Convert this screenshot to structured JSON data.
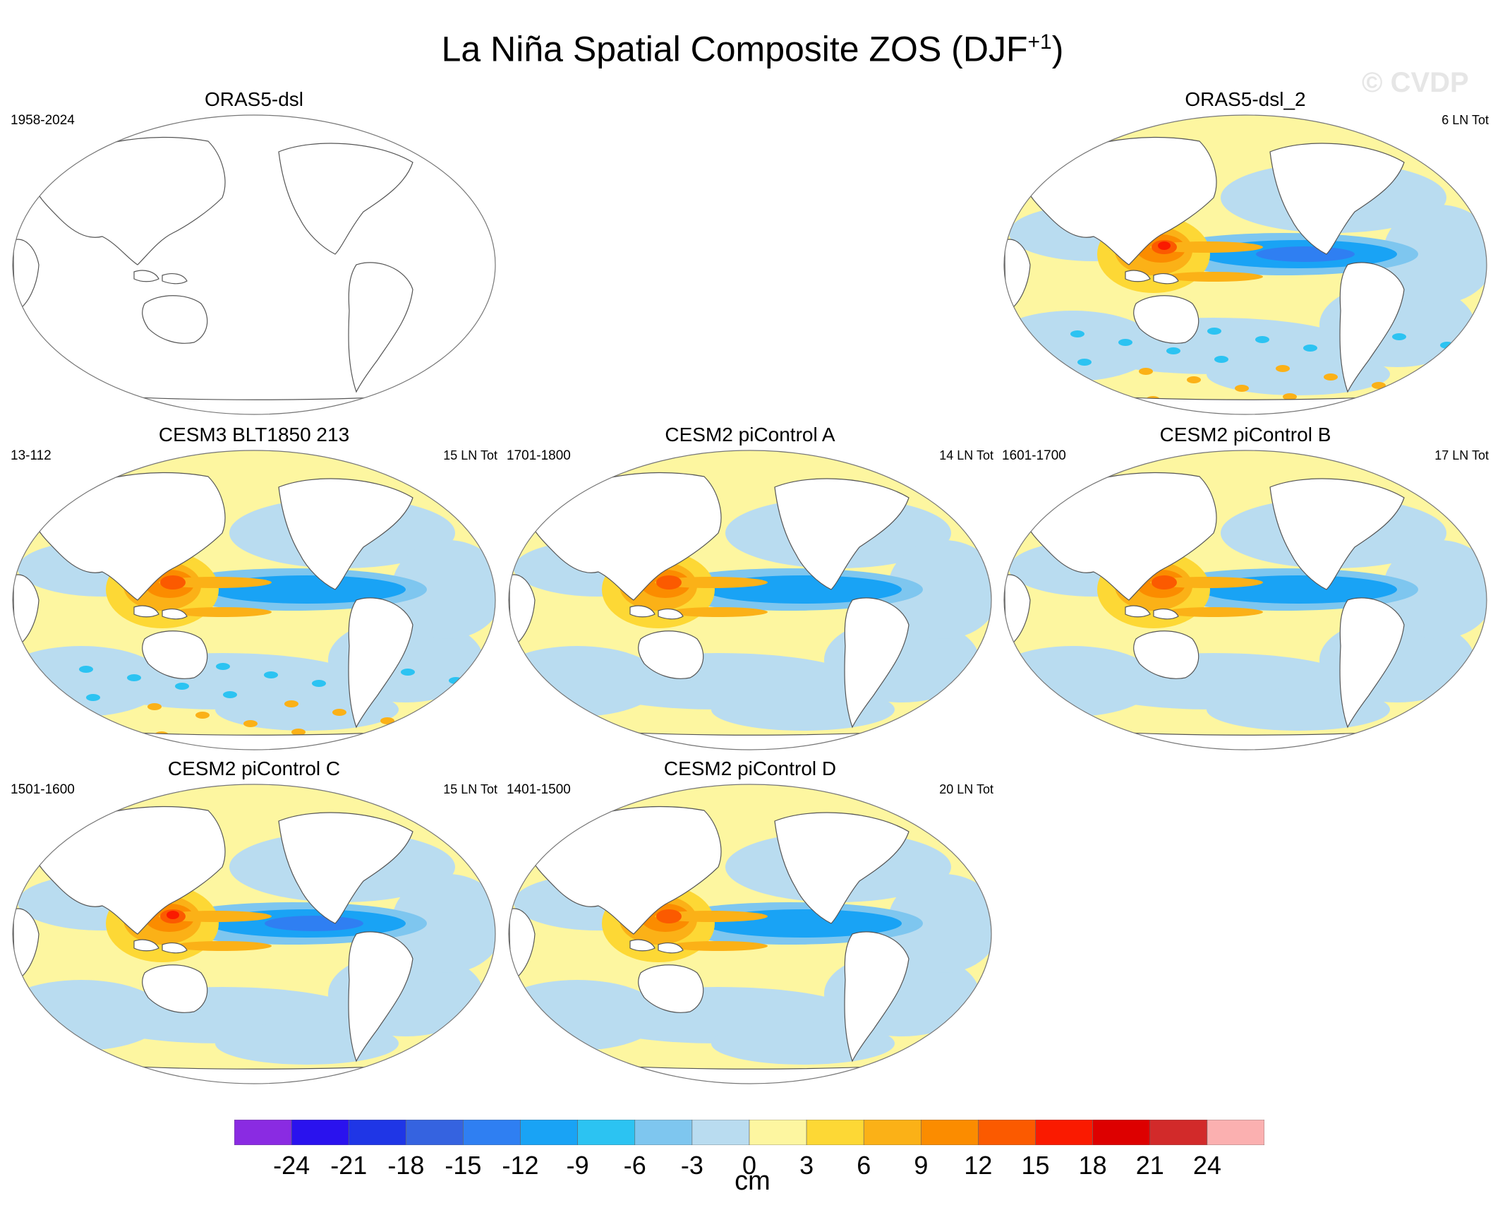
{
  "figure": {
    "title_main": "La Niña Spatial Composite ZOS (DJF",
    "title_sup": "+1",
    "title_close": ")",
    "watermark": "© CVDP"
  },
  "chart_data": [
    {
      "type": "heatmap",
      "title": "ORAS5-dsl",
      "range": "1958-2024",
      "count": "",
      "pattern": "none"
    },
    {
      "type": "heatmap",
      "title": "ORAS5-dsl_2",
      "range": "",
      "count": "6 LN Tot",
      "pattern": "obs"
    },
    {
      "type": "heatmap",
      "title": "CESM3 BLT1850 213",
      "range": "13-112",
      "count": "15 LN Tot",
      "pattern": "model_noisy"
    },
    {
      "type": "heatmap",
      "title": "CESM2 piControl A",
      "range": "1701-1800",
      "count": "14 LN Tot",
      "pattern": "model"
    },
    {
      "type": "heatmap",
      "title": "CESM2 piControl B",
      "range": "1601-1700",
      "count": "17 LN Tot",
      "pattern": "model"
    },
    {
      "type": "heatmap",
      "title": "CESM2 piControl C",
      "range": "1501-1600",
      "count": "15 LN Tot",
      "pattern": "model_strong"
    },
    {
      "type": "heatmap",
      "title": "CESM2 piControl D",
      "range": "1401-1500",
      "count": "20 LN Tot",
      "pattern": "model"
    }
  ],
  "colorbar": {
    "unit": "cm",
    "ticks": [
      "-24",
      "-21",
      "-18",
      "-15",
      "-12",
      "-9",
      "-6",
      "-3",
      "0",
      "3",
      "6",
      "9",
      "12",
      "15",
      "18",
      "21",
      "24"
    ],
    "colors": [
      "#8a2be2",
      "#2a12ee",
      "#1f36e6",
      "#3563e0",
      "#2f7ff2",
      "#19a3f5",
      "#2cc3f2",
      "#7ec6ef",
      "#b9dcf0",
      "#fdf6a0",
      "#fdd835",
      "#fbb117",
      "#fb8c00",
      "#fb5a00",
      "#fa1a00",
      "#dd0000",
      "#d22a2a",
      "#fbb0b0"
    ]
  }
}
